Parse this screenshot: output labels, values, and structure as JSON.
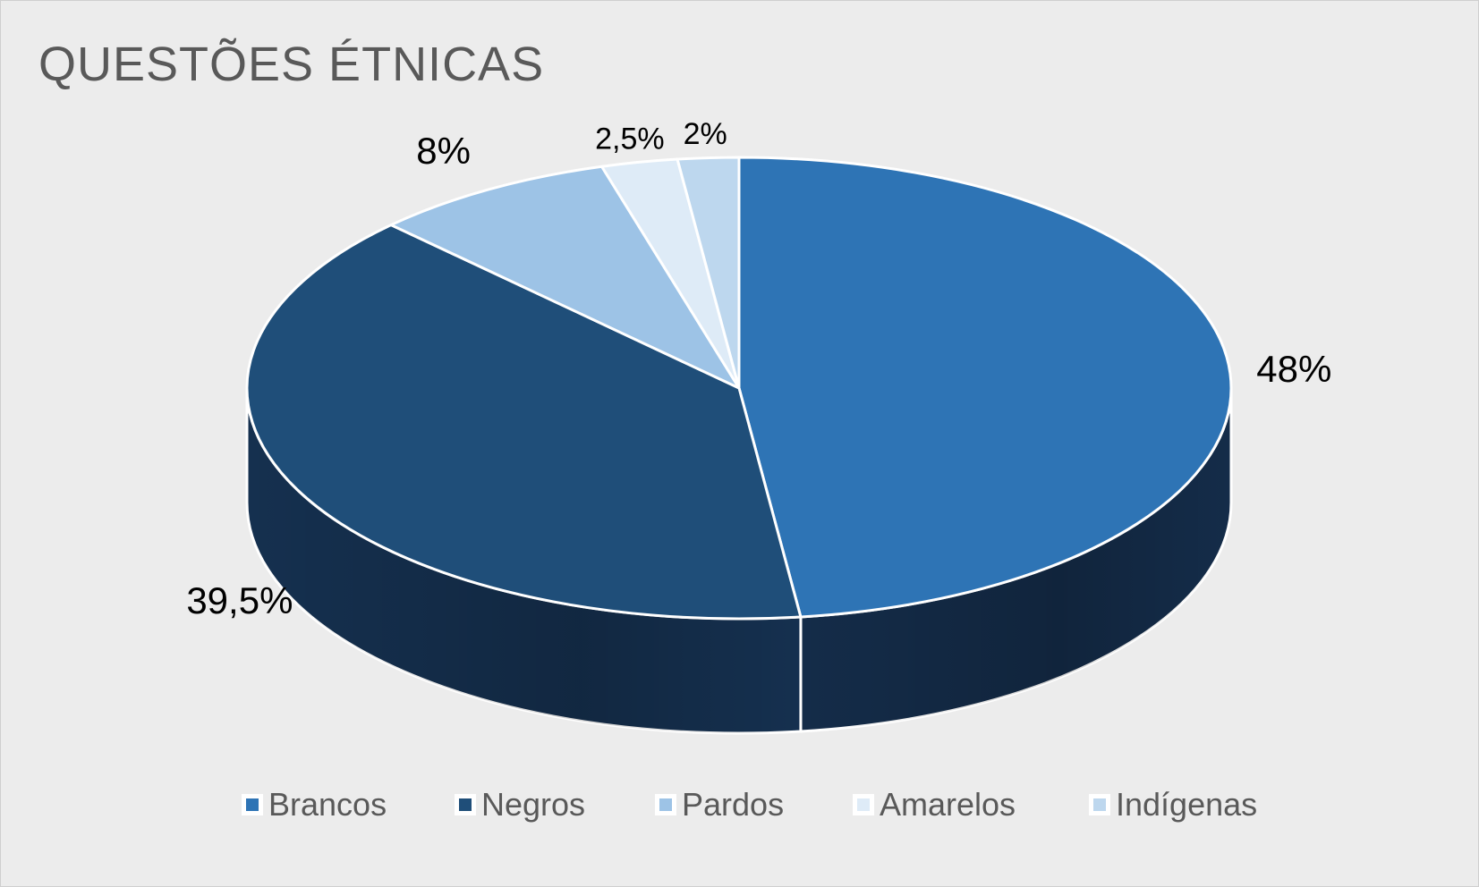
{
  "chart_data": {
    "type": "pie",
    "title": "QUESTÕES ÉTNICAS",
    "categories": [
      "Brancos",
      "Negros",
      "Pardos",
      "Amarelos",
      "Indígenas"
    ],
    "values": [
      48,
      39.5,
      8,
      2.5,
      2
    ],
    "data_labels": [
      "48%",
      "39,5%",
      "8%",
      "2,5%",
      "2%"
    ],
    "colors": [
      "#2e74b5",
      "#1f4e79",
      "#9dc3e6",
      "#deebf7",
      "#bdd7ee"
    ],
    "side_colors": [
      "#142c49",
      "#15304f",
      "#6f8ea8",
      "#a3aeb8",
      "#8ea3b6"
    ],
    "legend": "bottom",
    "style": "3d"
  }
}
